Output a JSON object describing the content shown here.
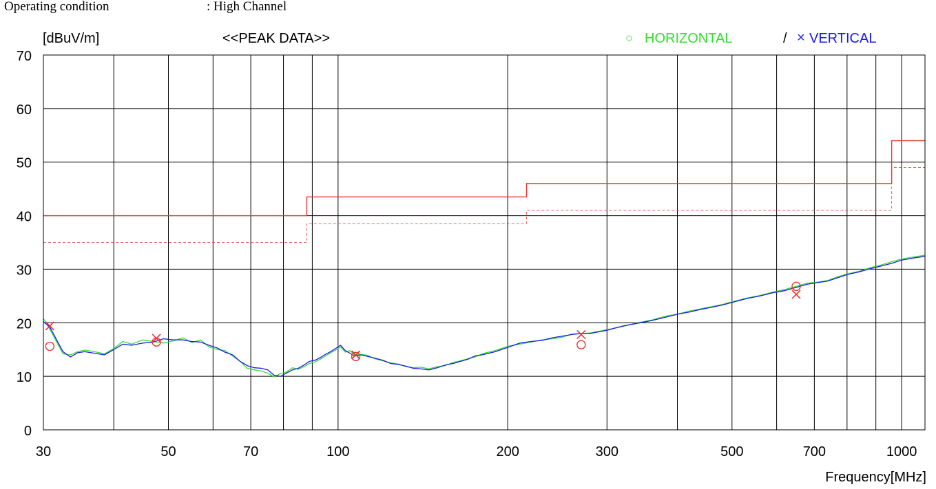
{
  "header": {
    "operating_label": "Operating condition",
    "operating_value": ": High Channel"
  },
  "colors": {
    "horizontal": "#33dd33",
    "vertical": "#1a1aee",
    "limit": "#e53935",
    "marker": "#ee3333",
    "grid": "#000000"
  },
  "chart_data": {
    "type": "line",
    "title": "<<PEAK DATA>>",
    "ylabel": "[dBuV/m]",
    "xlabel": "Frequency[MHz]",
    "x_scale": "log",
    "xlim": [
      30,
      1100
    ],
    "ylim": [
      0,
      70
    ],
    "grid": true,
    "legend_position": "top-right",
    "legend": {
      "horizontal_symbol": "○",
      "horizontal_label": "HORIZONTAL",
      "separator": "/",
      "vertical_symbol": "×",
      "vertical_label": "VERTICAL"
    },
    "x_ticks": [
      30,
      50,
      70,
      100,
      200,
      300,
      500,
      700,
      1000
    ],
    "y_ticks": [
      0,
      10,
      20,
      30,
      40,
      50,
      60,
      70
    ],
    "series": [
      {
        "name": "HORIZONTAL",
        "x": [
          30,
          30.8,
          31.6,
          32.5,
          33.5,
          34.5,
          35.5,
          37,
          38.5,
          40,
          41.5,
          43,
          45,
          47,
          49,
          51,
          53,
          55,
          57,
          59,
          61,
          63,
          65,
          67,
          69,
          71,
          73,
          75,
          77,
          79,
          81,
          83,
          85,
          87,
          89,
          91,
          93,
          95,
          97,
          99,
          101,
          103,
          105,
          107,
          110,
          113,
          116,
          120,
          124,
          128,
          132,
          136,
          140,
          145,
          150,
          155,
          160,
          165,
          170,
          175,
          180,
          190,
          200,
          210,
          220,
          230,
          240,
          250,
          260,
          270,
          280,
          290,
          300,
          320,
          340,
          360,
          380,
          400,
          420,
          440,
          460,
          480,
          500,
          530,
          560,
          590,
          620,
          650,
          680,
          710,
          740,
          770,
          800,
          840,
          880,
          920,
          960,
          1000,
          1050,
          1100
        ],
        "y": [
          20.8,
          18.8,
          16.6,
          14.2,
          14.0,
          14.6,
          14.9,
          14.6,
          14.2,
          15.2,
          16.5,
          16.0,
          16.8,
          16.5,
          16.2,
          16.6,
          17.2,
          16.3,
          16.8,
          15.5,
          15.0,
          14.8,
          13.8,
          12.8,
          11.5,
          11.2,
          11.0,
          10.6,
          9.9,
          10.5,
          10.8,
          11.6,
          11.3,
          11.8,
          12.4,
          12.7,
          13.2,
          13.8,
          14.4,
          14.9,
          15.5,
          14.5,
          14.8,
          14.0,
          14.1,
          13.9,
          13.3,
          12.9,
          12.5,
          12.3,
          11.8,
          11.6,
          11.7,
          11.4,
          11.8,
          12.0,
          12.6,
          12.9,
          13.3,
          13.6,
          14.2,
          14.8,
          15.6,
          16.0,
          16.4,
          16.8,
          17.0,
          17.3,
          17.9,
          18.0,
          18.1,
          18.4,
          18.7,
          19.3,
          20.0,
          20.5,
          21.2,
          21.6,
          22.2,
          22.6,
          23.0,
          23.4,
          23.9,
          24.6,
          25.1,
          25.7,
          26.2,
          26.8,
          27.4,
          27.6,
          27.9,
          28.6,
          29.1,
          29.6,
          30.3,
          30.8,
          31.4,
          31.9,
          32.3,
          32.6
        ]
      },
      {
        "name": "VERTICAL",
        "x": [
          30,
          30.8,
          31.6,
          32.5,
          33.5,
          34.5,
          35.5,
          37,
          38.5,
          40,
          41.5,
          43,
          45,
          47,
          49,
          51,
          53,
          55,
          57,
          59,
          61,
          63,
          65,
          67,
          69,
          71,
          73,
          75,
          77,
          79,
          81,
          83,
          85,
          87,
          89,
          91,
          93,
          95,
          97,
          99,
          101,
          103,
          105,
          107,
          110,
          113,
          116,
          120,
          124,
          128,
          132,
          136,
          140,
          145,
          150,
          155,
          160,
          165,
          170,
          175,
          180,
          190,
          200,
          210,
          220,
          230,
          240,
          250,
          260,
          270,
          280,
          290,
          300,
          320,
          340,
          360,
          380,
          400,
          420,
          440,
          460,
          480,
          500,
          530,
          560,
          590,
          620,
          650,
          680,
          710,
          740,
          770,
          800,
          840,
          880,
          920,
          960,
          1000,
          1050,
          1100
        ],
        "y": [
          20.2,
          19.2,
          17.0,
          14.6,
          13.6,
          14.4,
          14.6,
          14.3,
          14.0,
          15.0,
          16.0,
          15.8,
          16.2,
          16.4,
          17.0,
          16.8,
          16.8,
          16.5,
          16.4,
          15.8,
          15.3,
          14.5,
          14.0,
          12.8,
          12.0,
          11.6,
          11.5,
          11.2,
          10.2,
          10.0,
          10.6,
          11.2,
          11.5,
          12.1,
          12.8,
          13.0,
          13.5,
          14.1,
          14.6,
          15.2,
          15.8,
          14.8,
          14.3,
          13.8,
          14.0,
          13.7,
          13.4,
          13.0,
          12.4,
          12.2,
          11.9,
          11.5,
          11.4,
          11.2,
          11.6,
          12.1,
          12.4,
          12.8,
          13.2,
          13.8,
          14.0,
          14.6,
          15.4,
          16.2,
          16.5,
          16.7,
          17.2,
          17.5,
          17.8,
          18.0,
          18.0,
          18.3,
          18.6,
          19.4,
          19.9,
          20.4,
          21.0,
          21.6,
          22.0,
          22.5,
          22.9,
          23.3,
          23.8,
          24.5,
          25.0,
          25.6,
          26.0,
          26.6,
          27.2,
          27.5,
          27.8,
          28.4,
          29.0,
          29.5,
          30.1,
          30.6,
          31.1,
          31.7,
          32.1,
          32.4
        ]
      }
    ],
    "limits": [
      {
        "name": "limit",
        "style": "solid",
        "x": [
          30,
          88,
          88,
          216,
          216,
          960,
          960,
          1100
        ],
        "y": [
          40,
          40,
          43.5,
          43.5,
          46,
          46,
          54,
          54
        ]
      },
      {
        "name": "margin",
        "style": "dashed",
        "x": [
          30,
          88,
          88,
          216,
          216,
          960,
          960,
          1100
        ],
        "y": [
          35,
          35,
          38.5,
          38.5,
          41,
          41,
          49,
          49
        ]
      }
    ],
    "markers": [
      {
        "polarization": "horizontal",
        "x": 30.8,
        "y": 15.6
      },
      {
        "polarization": "horizontal",
        "x": 47.6,
        "y": 16.4
      },
      {
        "polarization": "horizontal",
        "x": 107.5,
        "y": 13.7
      },
      {
        "polarization": "horizontal",
        "x": 270,
        "y": 15.9
      },
      {
        "polarization": "horizontal",
        "x": 650,
        "y": 26.8
      },
      {
        "polarization": "vertical",
        "x": 30.8,
        "y": 19.4
      },
      {
        "polarization": "vertical",
        "x": 47.6,
        "y": 17.1
      },
      {
        "polarization": "vertical",
        "x": 107.5,
        "y": 14.0
      },
      {
        "polarization": "vertical",
        "x": 270,
        "y": 17.8
      },
      {
        "polarization": "vertical",
        "x": 650,
        "y": 25.3
      }
    ]
  }
}
